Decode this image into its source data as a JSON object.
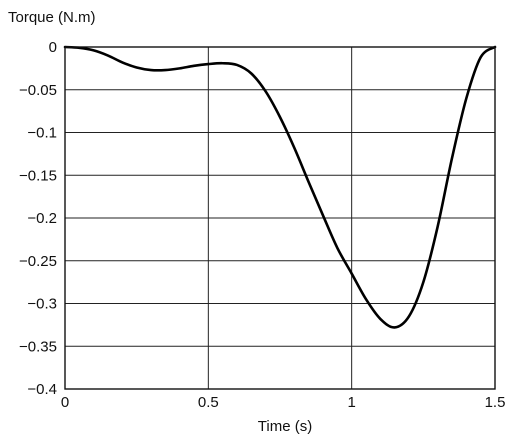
{
  "chart_data": {
    "type": "line",
    "title": "",
    "xlabel": "Time (s)",
    "ylabel": "Torque (N.m)",
    "xlim": [
      0,
      1.5
    ],
    "ylim": [
      -0.4,
      0
    ],
    "grid": true,
    "x_ticks": [
      {
        "value": 0,
        "label": "0"
      },
      {
        "value": 0.5,
        "label": "0.5"
      },
      {
        "value": 1,
        "label": "1"
      },
      {
        "value": 1.5,
        "label": "1.5"
      }
    ],
    "y_ticks": [
      {
        "value": 0,
        "label": "0"
      },
      {
        "value": -0.05,
        "label": "−0.05"
      },
      {
        "value": -0.1,
        "label": "−0.1"
      },
      {
        "value": -0.15,
        "label": "−0.15"
      },
      {
        "value": -0.2,
        "label": "−0.2"
      },
      {
        "value": -0.25,
        "label": "−0.25"
      },
      {
        "value": -0.3,
        "label": "−0.3"
      },
      {
        "value": -0.35,
        "label": "−0.35"
      },
      {
        "value": -0.4,
        "label": "−0.4"
      }
    ],
    "series": [
      {
        "color": "#000000",
        "x": [
          0,
          0.05,
          0.1,
          0.15,
          0.2,
          0.25,
          0.3,
          0.35,
          0.4,
          0.45,
          0.5,
          0.55,
          0.6,
          0.65,
          0.7,
          0.75,
          0.8,
          0.85,
          0.9,
          0.95,
          1.0,
          1.05,
          1.1,
          1.15,
          1.2,
          1.25,
          1.3,
          1.35,
          1.4,
          1.45,
          1.5
        ],
        "y": [
          0,
          -0.001,
          -0.004,
          -0.01,
          -0.018,
          -0.024,
          -0.027,
          -0.027,
          -0.025,
          -0.022,
          -0.02,
          -0.019,
          -0.021,
          -0.031,
          -0.052,
          -0.082,
          -0.118,
          -0.158,
          -0.197,
          -0.235,
          -0.265,
          -0.295,
          -0.318,
          -0.328,
          -0.315,
          -0.275,
          -0.21,
          -0.13,
          -0.06,
          -0.012,
          0
        ]
      }
    ]
  }
}
